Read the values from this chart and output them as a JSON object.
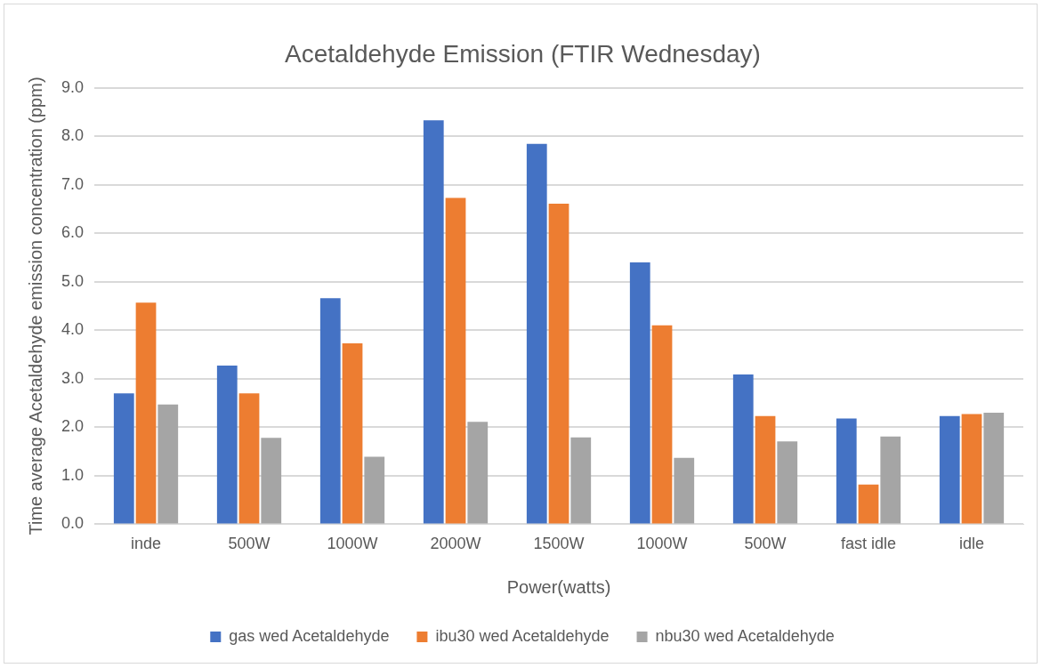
{
  "chart_data": {
    "type": "bar",
    "title": "Acetaldehyde Emission (FTIR Wednesday)",
    "xlabel": "Power(watts)",
    "ylabel": "Time average Acetaldehyde emission concentration (ppm)",
    "categories": [
      "inde",
      "500W",
      "1000W",
      "2000W",
      "1500W",
      "1000W",
      "500W",
      "fast idle",
      "idle"
    ],
    "series": [
      {
        "name": "gas wed Acetaldehyde",
        "color": "#4472c4",
        "values": [
          2.7,
          3.27,
          4.66,
          8.33,
          7.84,
          5.4,
          3.09,
          2.18,
          2.23
        ]
      },
      {
        "name": "ibu30 wed Acetaldehyde",
        "color": "#ed7d31",
        "values": [
          4.57,
          2.7,
          3.73,
          6.73,
          6.61,
          4.1,
          2.23,
          0.82,
          2.27
        ]
      },
      {
        "name": "nbu30 wed Acetaldehyde",
        "color": "#a5a5a5",
        "values": [
          2.47,
          1.78,
          1.39,
          2.11,
          1.79,
          1.37,
          1.71,
          1.81,
          2.3
        ]
      }
    ],
    "ylim": [
      0,
      9
    ],
    "yticks": [
      {
        "value": 0,
        "label": "0.0"
      },
      {
        "value": 1,
        "label": "1.0"
      },
      {
        "value": 2,
        "label": "2.0"
      },
      {
        "value": 3,
        "label": "3.0"
      },
      {
        "value": 4,
        "label": "4.0"
      },
      {
        "value": 5,
        "label": "5.0"
      },
      {
        "value": 6,
        "label": "6.0"
      },
      {
        "value": 7,
        "label": "7.0"
      },
      {
        "value": 8,
        "label": "8.0"
      },
      {
        "value": 9,
        "label": "9.0"
      }
    ],
    "grid": "y",
    "legend": "bottom"
  }
}
